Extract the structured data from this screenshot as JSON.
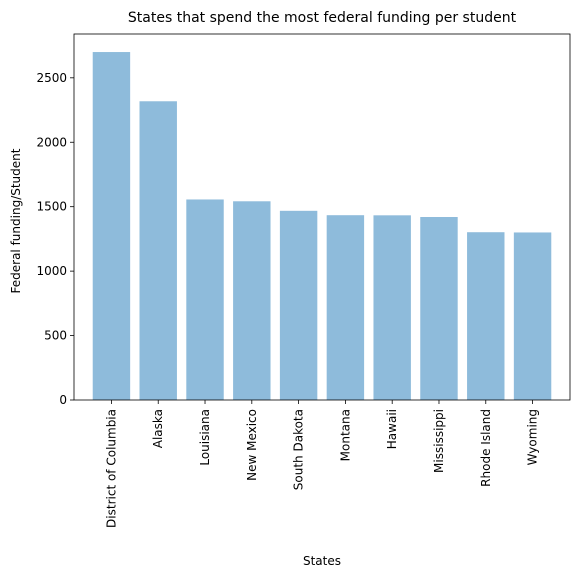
{
  "chart_data": {
    "type": "bar",
    "title": "States that spend the most federal funding per student",
    "xlabel": "States",
    "ylabel": "Federal funding/Student",
    "categories": [
      "District of Columbia",
      "Alaska",
      "Louisiana",
      "New Mexico",
      "South Dakota",
      "Montana",
      "Hawaii",
      "Mississippi",
      "Rhode Island",
      "Wyoming"
    ],
    "values": [
      2700,
      2318,
      1556,
      1542,
      1468,
      1434,
      1433,
      1420,
      1302,
      1300
    ],
    "ylim": [
      0,
      2840
    ],
    "yticks": [
      0,
      500,
      1000,
      1500,
      2000,
      2500
    ],
    "bar_color": "#8ebbdb",
    "grid": false,
    "legend": false
  }
}
